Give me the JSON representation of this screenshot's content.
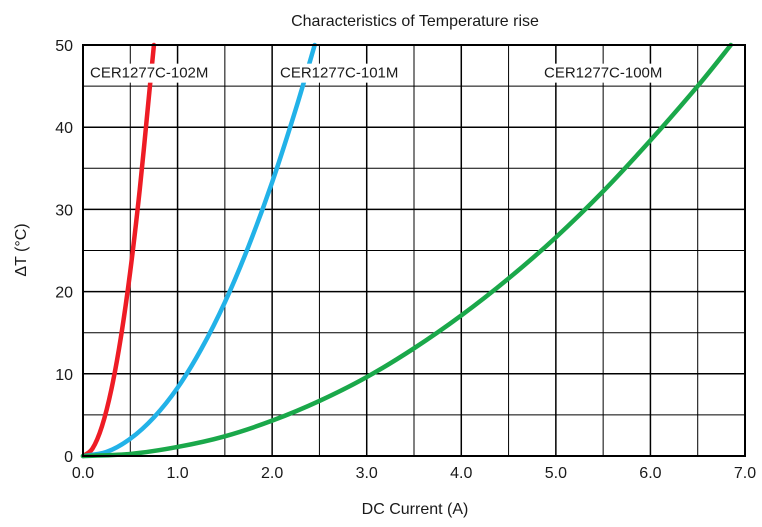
{
  "chart_data": {
    "type": "line",
    "title": "Characteristics of Temperature rise",
    "xlabel": "DC Current (A)",
    "ylabel": "ΔT (°C)",
    "xlim": [
      0,
      7
    ],
    "ylim": [
      0,
      50
    ],
    "x_ticks": [
      "0.0",
      "1.0",
      "2.0",
      "3.0",
      "4.0",
      "5.0",
      "6.0",
      "7.0"
    ],
    "y_ticks": [
      "0",
      "10",
      "20",
      "30",
      "40",
      "50"
    ],
    "grid": true,
    "series": [
      {
        "name": "CER1277C-102M",
        "color": "#ee1c25",
        "x": [
          0.0,
          0.1,
          0.2,
          0.3,
          0.4,
          0.5,
          0.6,
          0.7,
          0.75
        ],
        "y": [
          0.0,
          0.9,
          3.6,
          8.1,
          14.4,
          22.5,
          32.4,
          44.1,
          50.0
        ]
      },
      {
        "name": "CER1277C-101M",
        "color": "#22b2e8",
        "x": [
          0.0,
          0.25,
          0.5,
          0.75,
          1.0,
          1.25,
          1.5,
          1.75,
          2.0,
          2.25,
          2.45
        ],
        "y": [
          0.0,
          0.5,
          2.1,
          4.7,
          8.3,
          13.0,
          18.7,
          25.5,
          33.3,
          42.2,
          50.0
        ]
      },
      {
        "name": "CER1277C-100M",
        "color": "#1aa84a",
        "x": [
          0.0,
          0.5,
          1.0,
          1.5,
          2.0,
          2.5,
          3.0,
          3.5,
          4.0,
          4.5,
          5.0,
          5.5,
          6.0,
          6.5,
          6.85
        ],
        "y": [
          0.0,
          0.25,
          1.1,
          2.4,
          4.3,
          6.7,
          9.6,
          13.1,
          17.1,
          21.6,
          26.6,
          32.2,
          38.4,
          45.0,
          50.0
        ]
      }
    ]
  }
}
